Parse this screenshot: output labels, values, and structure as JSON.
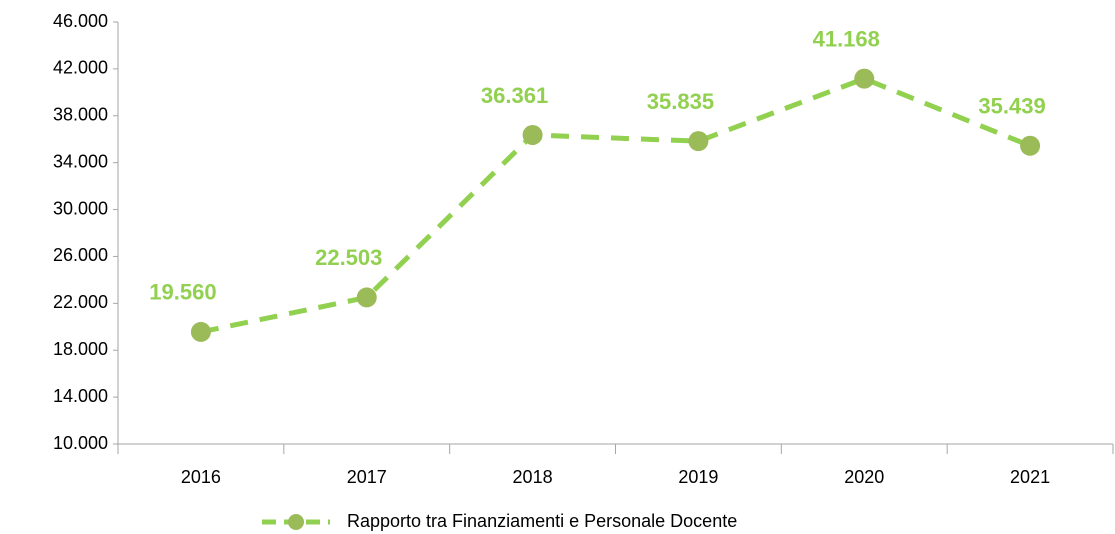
{
  "chart_data": {
    "type": "line",
    "categories": [
      "2016",
      "2017",
      "2018",
      "2019",
      "2020",
      "2021"
    ],
    "series": [
      {
        "name": "Rapporto tra Finanziamenti e Personale Docente",
        "color": "#92d050",
        "marker_color": "#9bbb59",
        "values": [
          19560,
          22503,
          36361,
          35835,
          41168,
          35439
        ],
        "value_labels": [
          "19.560",
          "22.503",
          "36.361",
          "35.835",
          "41.168",
          "35.439"
        ]
      }
    ],
    "ylim": [
      10000,
      46000
    ],
    "yticks": [
      {
        "value": 10000,
        "label": "10.000"
      },
      {
        "value": 14000,
        "label": "14.000"
      },
      {
        "value": 18000,
        "label": "18.000"
      },
      {
        "value": 22000,
        "label": "22.000"
      },
      {
        "value": 26000,
        "label": "26.000"
      },
      {
        "value": 30000,
        "label": "30.000"
      },
      {
        "value": 34000,
        "label": "34.000"
      },
      {
        "value": 38000,
        "label": "38.000"
      },
      {
        "value": 42000,
        "label": "42.000"
      },
      {
        "value": 46000,
        "label": "46.000"
      }
    ],
    "grid": false,
    "legend": "bottom"
  }
}
